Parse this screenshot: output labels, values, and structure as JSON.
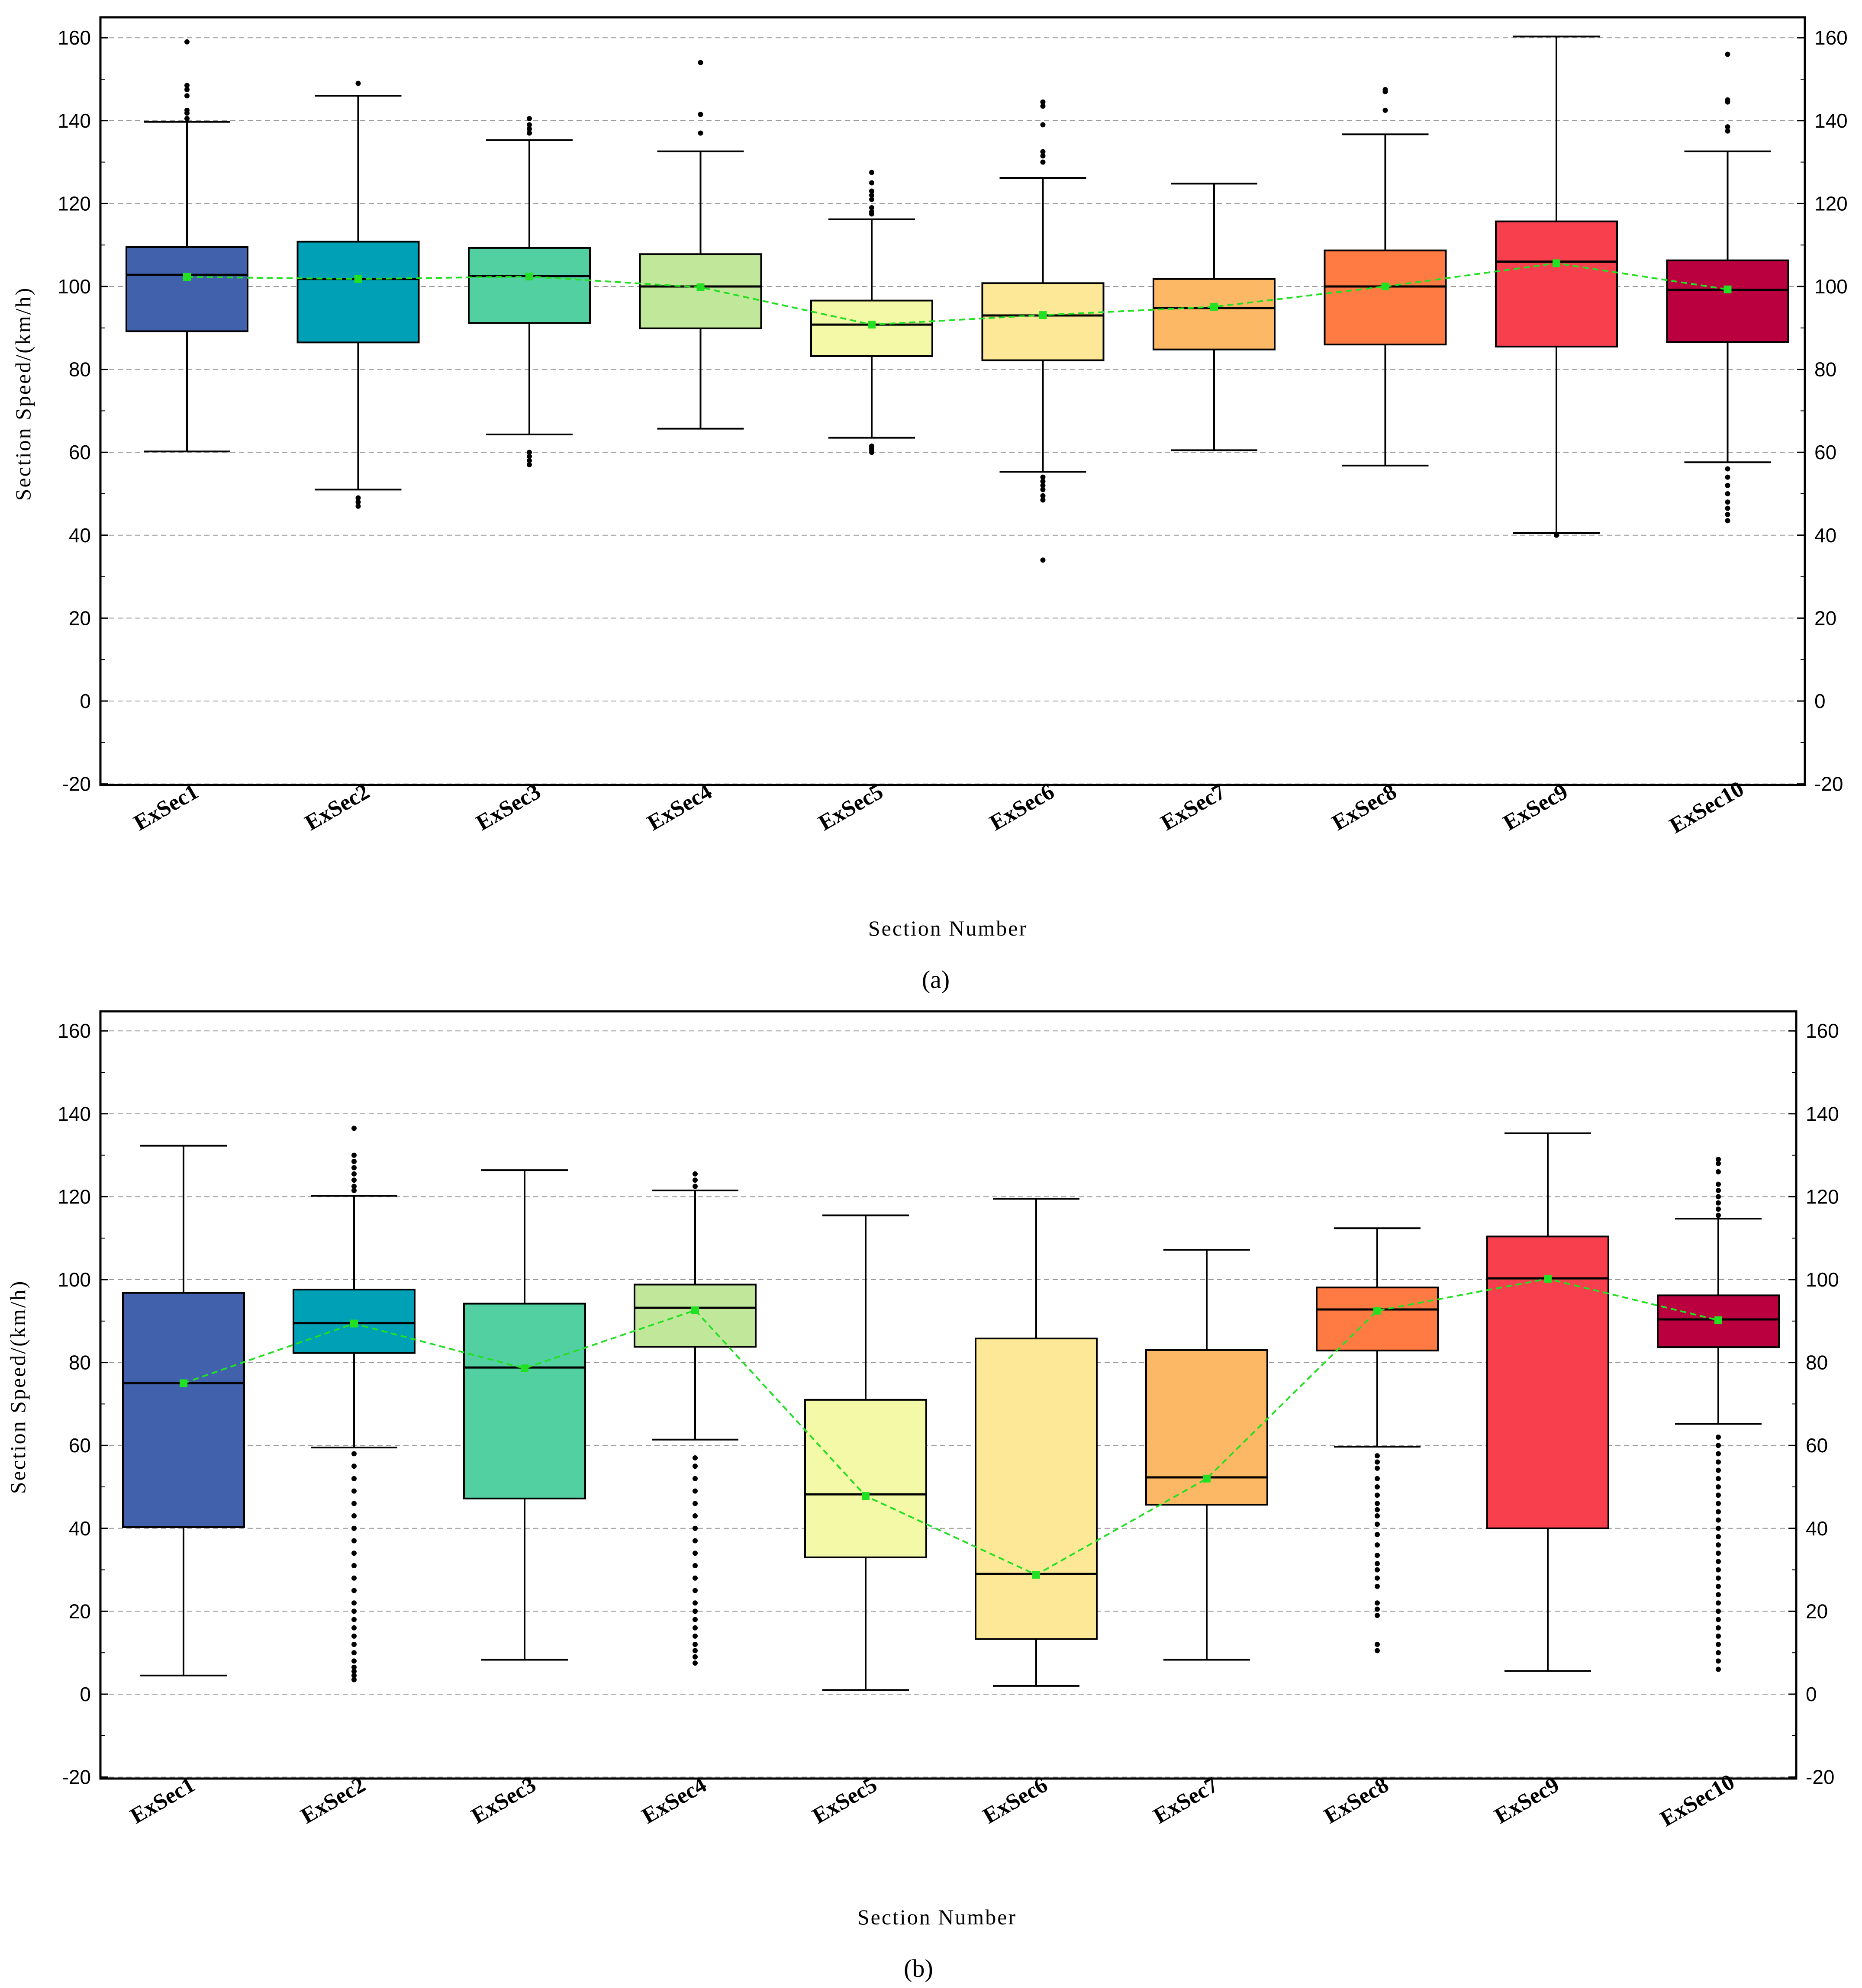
{
  "chart_data": [
    {
      "type": "box",
      "panel": "a",
      "caption": "(a)",
      "xlabel": "Section Number",
      "ylabel": "Section Speed/(km/h)",
      "ylim": [
        -20,
        165
      ],
      "yticks": [
        -20,
        0,
        20,
        40,
        60,
        80,
        100,
        120,
        140,
        160
      ],
      "right_axis_ticks": true,
      "grid": "horizontal dashed",
      "categories": [
        "ExSec1",
        "ExSec2",
        "ExSec3",
        "ExSec4",
        "ExSec5",
        "ExSec6",
        "ExSec7",
        "ExSec8",
        "ExSec9",
        "ExSec10"
      ],
      "colors": [
        "#4161ad",
        "#00a0b6",
        "#53d0a2",
        "#c1e89a",
        "#f3f9a6",
        "#fde898",
        "#fdb865",
        "#ff7b43",
        "#f73f4e",
        "#bb003f"
      ],
      "boxes": [
        {
          "whisker_low": 60.2,
          "q1": 89.2,
          "median": 102.8,
          "q3": 109.5,
          "whisker_high": 139.7,
          "mean": 102.3,
          "outliers": [
            140.5,
            141.8,
            142.5,
            146.0,
            147.5,
            148.5,
            159.0
          ]
        },
        {
          "whisker_low": 51.0,
          "q1": 86.5,
          "median": 101.8,
          "q3": 110.8,
          "whisker_high": 146.0,
          "mean": 101.8,
          "outliers": [
            47.0,
            48.0,
            49.0,
            149.0
          ]
        },
        {
          "whisker_low": 64.3,
          "q1": 91.2,
          "median": 102.5,
          "q3": 109.3,
          "whisker_high": 135.3,
          "mean": 102.4,
          "outliers": [
            57.0,
            58.0,
            59.0,
            60.0,
            137.0,
            138.0,
            139.0,
            140.5
          ]
        },
        {
          "whisker_low": 65.7,
          "q1": 89.9,
          "median": 100.0,
          "q3": 107.8,
          "whisker_high": 132.6,
          "mean": 99.8,
          "outliers": [
            137.0,
            141.5,
            154.0
          ]
        },
        {
          "whisker_low": 63.5,
          "q1": 83.2,
          "median": 90.8,
          "q3": 96.6,
          "whisker_high": 116.2,
          "mean": 90.8,
          "outliers": [
            60.0,
            60.5,
            61.0,
            61.5,
            117.5,
            118.0,
            119.0,
            121.0,
            122.0,
            123.0,
            125.0,
            127.5
          ]
        },
        {
          "whisker_low": 55.3,
          "q1": 82.2,
          "median": 93.0,
          "q3": 100.8,
          "whisker_high": 126.2,
          "mean": 93.1,
          "outliers": [
            34.0,
            48.5,
            49.5,
            51.0,
            52.0,
            53.0,
            54.0,
            130.0,
            131.5,
            132.5,
            139.0,
            143.5,
            144.5
          ]
        },
        {
          "whisker_low": 60.5,
          "q1": 84.8,
          "median": 94.8,
          "q3": 101.8,
          "whisker_high": 124.8,
          "mean": 95.1,
          "outliers": []
        },
        {
          "whisker_low": 56.8,
          "q1": 86.0,
          "median": 100.0,
          "q3": 108.7,
          "whisker_high": 136.7,
          "mean": 100.0,
          "outliers": [
            142.5,
            147.0,
            147.5
          ]
        },
        {
          "whisker_low": 40.5,
          "q1": 85.5,
          "median": 106.0,
          "q3": 115.7,
          "whisker_high": 160.3,
          "mean": 105.6,
          "outliers": [
            40.0
          ]
        },
        {
          "whisker_low": 57.6,
          "q1": 86.6,
          "median": 99.2,
          "q3": 106.3,
          "whisker_high": 132.6,
          "mean": 99.3,
          "outliers": [
            43.5,
            45.0,
            46.5,
            48.0,
            50.0,
            52.0,
            54.0,
            56.0,
            137.5,
            138.5,
            144.5,
            145.0,
            156.0
          ]
        }
      ],
      "mean_line": {
        "color": "#22e022",
        "style": "dashed"
      }
    },
    {
      "type": "box",
      "panel": "b",
      "caption": "(b)",
      "xlabel": "Section Number",
      "ylabel": "Section Speed/(km/h)",
      "ylim": [
        -20,
        165
      ],
      "yticks": [
        -20,
        0,
        20,
        40,
        60,
        80,
        100,
        120,
        140,
        160
      ],
      "right_axis_ticks": true,
      "grid": "horizontal dashed",
      "categories": [
        "ExSec1",
        "ExSec2",
        "ExSec3",
        "ExSec4",
        "ExSec5",
        "ExSec6",
        "ExSec7",
        "ExSec8",
        "ExSec9",
        "ExSec10"
      ],
      "colors": [
        "#4161ad",
        "#00a0b6",
        "#53d0a2",
        "#c1e89a",
        "#f3f9a6",
        "#fde898",
        "#fdb865",
        "#ff7b43",
        "#f73f4e",
        "#bb003f"
      ],
      "boxes": [
        {
          "whisker_low": 4.5,
          "q1": 40.3,
          "median": 75.0,
          "q3": 96.8,
          "whisker_high": 132.3,
          "mean": 75.0,
          "outliers": []
        },
        {
          "whisker_low": 59.5,
          "q1": 82.3,
          "median": 89.5,
          "q3": 97.6,
          "whisker_high": 120.2,
          "mean": 89.4,
          "outliers": [
            3.5,
            4.5,
            5.5,
            6.5,
            8.0,
            10.0,
            12.0,
            14.0,
            16.0,
            18.0,
            20.0,
            22.0,
            25.0,
            28.0,
            31.0,
            34.0,
            37.0,
            40.0,
            43.0,
            46.0,
            49.0,
            52.0,
            55.0,
            58.0,
            121.5,
            122.5,
            124.0,
            125.5,
            127.0,
            128.5,
            130.0,
            136.5
          ]
        },
        {
          "whisker_low": 8.3,
          "q1": 47.2,
          "median": 78.8,
          "q3": 94.2,
          "whisker_high": 126.4,
          "mean": 78.6,
          "outliers": []
        },
        {
          "whisker_low": 61.4,
          "q1": 83.8,
          "median": 93.2,
          "q3": 98.8,
          "whisker_high": 121.5,
          "mean": 92.6,
          "outliers": [
            7.5,
            9.0,
            10.5,
            12.0,
            14.0,
            16.0,
            18.0,
            20.0,
            22.0,
            25.0,
            28.0,
            31.0,
            34.0,
            37.0,
            40.0,
            43.0,
            46.0,
            49.0,
            52.0,
            55.0,
            57.0,
            122.5,
            124.0,
            125.5
          ]
        },
        {
          "whisker_low": 1.0,
          "q1": 33.0,
          "median": 48.2,
          "q3": 71.0,
          "whisker_high": 115.5,
          "mean": 47.8,
          "outliers": []
        },
        {
          "whisker_low": 2.0,
          "q1": 13.3,
          "median": 29.0,
          "q3": 85.8,
          "whisker_high": 119.5,
          "mean": 28.8,
          "outliers": []
        },
        {
          "whisker_low": 8.3,
          "q1": 45.7,
          "median": 52.3,
          "q3": 83.0,
          "whisker_high": 107.2,
          "mean": 52.0,
          "outliers": []
        },
        {
          "whisker_low": 59.7,
          "q1": 82.9,
          "median": 92.8,
          "q3": 98.1,
          "whisker_high": 112.4,
          "mean": 92.5,
          "outliers": [
            10.5,
            12.0,
            19.0,
            20.5,
            22.0,
            26.0,
            28.0,
            30.0,
            31.5,
            33.5,
            36.0,
            38.5,
            41.0,
            43.0,
            44.5,
            46.0,
            48.0,
            50.0,
            52.0,
            54.5,
            56.0,
            57.5
          ]
        },
        {
          "whisker_low": 5.6,
          "q1": 40.0,
          "median": 100.3,
          "q3": 110.4,
          "whisker_high": 135.3,
          "mean": 100.2,
          "outliers": []
        },
        {
          "whisker_low": 65.2,
          "q1": 83.7,
          "median": 90.4,
          "q3": 96.2,
          "whisker_high": 114.7,
          "mean": 90.2,
          "outliers": [
            6.0,
            8.0,
            10.0,
            12.0,
            14.0,
            16.0,
            18.0,
            20.0,
            22.0,
            24.0,
            26.0,
            28.0,
            30.0,
            32.0,
            34.0,
            36.0,
            38.0,
            40.0,
            42.0,
            44.0,
            46.0,
            48.0,
            50.0,
            52.0,
            54.0,
            56.0,
            58.0,
            60.0,
            62.0,
            115.5,
            117.0,
            118.5,
            120.0,
            121.5,
            123.0,
            126.0,
            128.0,
            129.0
          ]
        }
      ],
      "mean_line": {
        "color": "#22e022",
        "style": "dashed"
      }
    }
  ]
}
